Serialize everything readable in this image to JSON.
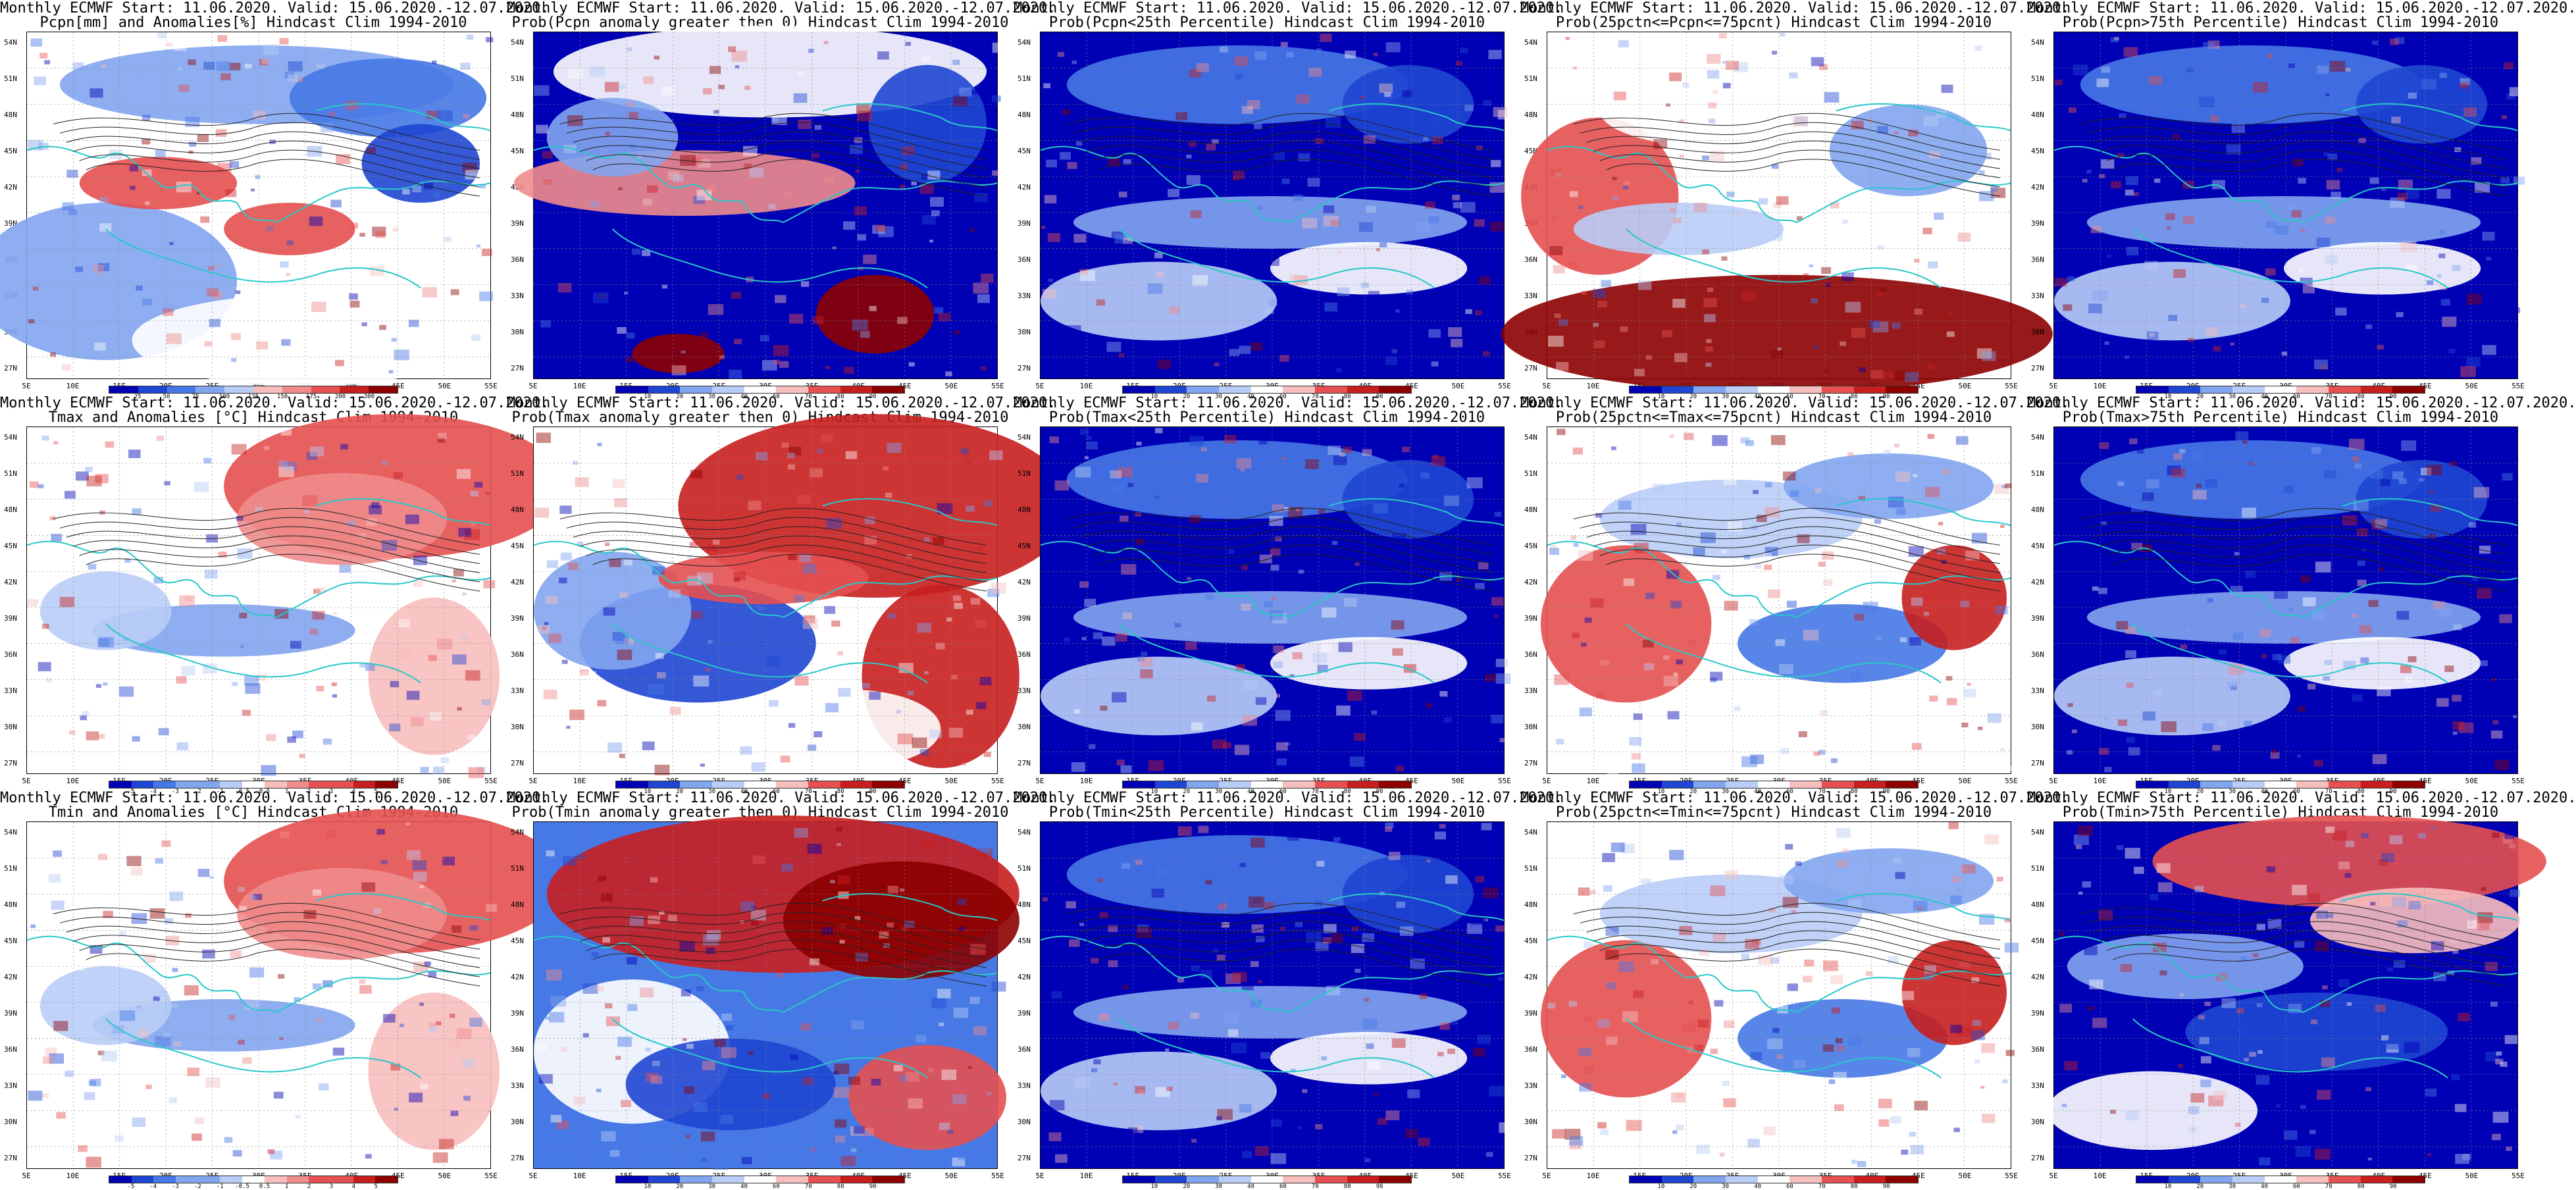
{
  "colors": {
    "blue_scale": [
      "#0000b4",
      "#1e46d2",
      "#4678e6",
      "#82a5f0",
      "#b9cdf7",
      "#ffffff",
      "#f7bebe",
      "#f08c8c",
      "#e65050",
      "#c81e1e",
      "#8c0000"
    ],
    "sea_coast": "#28c8c8",
    "contour": "#222222"
  },
  "lat_labels": [
    "54N",
    "51N",
    "48N",
    "45N",
    "42N",
    "39N",
    "36N",
    "33N",
    "30N",
    "27N"
  ],
  "lon_labels": [
    "5E",
    "10E",
    "15E",
    "20E",
    "25E",
    "30E",
    "35E",
    "40E",
    "45E",
    "50E",
    "55E"
  ],
  "panels": [
    {
      "line1": "Monthly ECMWF Start: 11.06.2020. Valid: 15.06.2020.-12.07.2020.",
      "line2": "Pcpn[mm] and Anomalies[%] Hindcast Clim 1994-2010",
      "cbar_ticks": [
        "25",
        "50",
        "75",
        "100",
        "125",
        "150",
        "175",
        "200",
        "300"
      ],
      "pattern": "pcpn",
      "cbar": "diverging"
    },
    {
      "line1": "Monthly ECMWF Start: 11.06.2020. Valid: 15.06.2020.-12.07.2020.",
      "line2": "Prob(Pcpn anomaly greater then 0) Hindcast Clim 1994-2010",
      "cbar_ticks": [
        "10",
        "20",
        "30",
        "40",
        "60",
        "70",
        "80",
        "90"
      ],
      "pattern": "pprob",
      "cbar": "diverging"
    },
    {
      "line1": "Monthly ECMWF Start: 11.06.2020. Valid: 15.06.2020.-12.07.2020.",
      "line2": "Prob(Pcpn<25th Percentile) Hindcast Clim 1994-2010",
      "cbar_ticks": [
        "10",
        "20",
        "30",
        "40",
        "60",
        "70",
        "80",
        "90"
      ],
      "pattern": "blue",
      "cbar": "diverging"
    },
    {
      "line1": "Monthly ECMWF Start: 11.06.2020. Valid: 15.06.2020.-12.07.2020.",
      "line2": "Prob(25pctn<=Pcpn<=75pcnt) Hindcast Clim 1994-2010",
      "cbar_ticks": [
        "10",
        "20",
        "30",
        "40",
        "60",
        "70",
        "80",
        "90"
      ],
      "pattern": "redsouth",
      "cbar": "diverging"
    },
    {
      "line1": "Monthly ECMWF Start: 11.06.2020. Valid: 15.06.2020.-12.07.2020.",
      "line2": "Prob(Pcpn>75th Percentile) Hindcast Clim 1994-2010",
      "cbar_ticks": [
        "10",
        "20",
        "30",
        "40",
        "60",
        "70",
        "80",
        "90"
      ],
      "pattern": "blue",
      "cbar": "diverging"
    },
    {
      "line1": "Monthly ECMWF Start: 11.06.2020. Valid: 15.06.2020.-12.07.2020.",
      "line2": "Tmax and Anomalies [°C] Hindcast Clim 1994-2010",
      "cbar_ticks": [
        "-5",
        "-4",
        "-3",
        "-2",
        "-1",
        "-0.5",
        "0.5",
        "1",
        "2",
        "3",
        "4",
        "5"
      ],
      "pattern": "warmne",
      "cbar": "diverging"
    },
    {
      "line1": "Monthly ECMWF Start: 11.06.2020. Valid: 15.06.2020.-12.07.2020.",
      "line2": "Prob(Tmax anomaly greater then 0) Hindcast Clim 1994-2010",
      "cbar_ticks": [
        "10",
        "20",
        "30",
        "40",
        "60",
        "70",
        "80",
        "90"
      ],
      "pattern": "hotne",
      "cbar": "diverging"
    },
    {
      "line1": "Monthly ECMWF Start: 11.06.2020. Valid: 15.06.2020.-12.07.2020.",
      "line2": "Prob(Tmax<25th Percentile) Hindcast Clim 1994-2010",
      "cbar_ticks": [
        "10",
        "20",
        "30",
        "40",
        "60",
        "70",
        "80",
        "90"
      ],
      "pattern": "blue",
      "cbar": "diverging"
    },
    {
      "line1": "Monthly ECMWF Start: 11.06.2020. Valid: 15.06.2020.-12.07.2020.",
      "line2": "Prob(25pctn<=Tmax<=75pcnt) Hindcast Clim 1994-2010",
      "cbar_ticks": [
        "10",
        "20",
        "30",
        "40",
        "60",
        "70",
        "80",
        "90"
      ],
      "pattern": "mixed",
      "cbar": "diverging"
    },
    {
      "line1": "Monthly ECMWF Start: 11.06.2020. Valid: 15.06.2020.-12.07.2020.",
      "line2": "Prob(Tmax>75th Percentile) Hindcast Clim 1994-2010",
      "cbar_ticks": [
        "10",
        "20",
        "30",
        "40",
        "60",
        "70",
        "80",
        "90"
      ],
      "pattern": "blue",
      "cbar": "diverging"
    },
    {
      "line1": "Monthly ECMWF Start: 11.06.2020. Valid: 15.06.2020.-12.07.2020.",
      "line2": "Tmin and Anomalies [°C] Hindcast Clim 1994-2010",
      "cbar_ticks": [
        "-5",
        "-4",
        "-3",
        "-2",
        "-1",
        "-0.5",
        "0.5",
        "1",
        "2",
        "3",
        "4",
        "5"
      ],
      "pattern": "warmne",
      "cbar": "diverging"
    },
    {
      "line1": "Monthly ECMWF Start: 11.06.2020. Valid: 15.06.2020.-12.07.2020.",
      "line2": "Prob(Tmin anomaly greater then 0) Hindcast Clim 1994-2010",
      "cbar_ticks": [
        "10",
        "20",
        "30",
        "40",
        "60",
        "70",
        "80",
        "90"
      ],
      "pattern": "hotnorth",
      "cbar": "diverging"
    },
    {
      "line1": "Monthly ECMWF Start: 11.06.2020. Valid: 15.06.2020.-12.07.2020.",
      "line2": "Prob(Tmin<25th Percentile) Hindcast Clim 1994-2010",
      "cbar_ticks": [
        "10",
        "20",
        "30",
        "40",
        "60",
        "70",
        "80",
        "90"
      ],
      "pattern": "blue",
      "cbar": "diverging"
    },
    {
      "line1": "Monthly ECMWF Start: 11.06.2020. Valid: 15.06.2020.-12.07.2020.",
      "line2": "Prob(25pctn<=Tmin<=75pcnt) Hindcast Clim 1994-2010",
      "cbar_ticks": [
        "10",
        "20",
        "30",
        "40",
        "60",
        "70",
        "80",
        "90"
      ],
      "pattern": "mixed",
      "cbar": "diverging"
    },
    {
      "line1": "Monthly ECMWF Start: 11.06.2020. Valid: 15.06.2020.-12.07.2020.",
      "line2": "Prob(Tmin>75th Percentile) Hindcast Clim 1994-2010",
      "cbar_ticks": [
        "10",
        "20",
        "30",
        "40",
        "60",
        "70",
        "80",
        "90"
      ],
      "pattern": "bluered",
      "cbar": "diverging"
    }
  ]
}
